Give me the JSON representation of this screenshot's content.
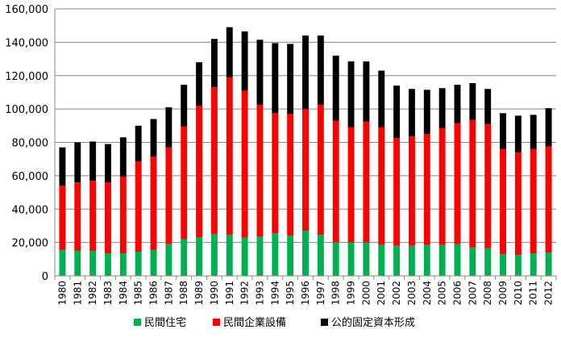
{
  "chart_data": {
    "type": "bar",
    "stacked": true,
    "title": "",
    "xlabel": "",
    "ylabel": "",
    "ylim": [
      0,
      160000
    ],
    "yticks": [
      "0",
      "20,000",
      "40,000",
      "60,000",
      "80,000",
      "100,000",
      "120,000",
      "140,000",
      "160,000"
    ],
    "grid": true,
    "legend_position": "bottom",
    "categories": [
      "1980",
      "1981",
      "1982",
      "1983",
      "1984",
      "1985",
      "1986",
      "1987",
      "1988",
      "1989",
      "1990",
      "1991",
      "1992",
      "1993",
      "1994",
      "1995",
      "1996",
      "1997",
      "1998",
      "1999",
      "2000",
      "2001",
      "2002",
      "2003",
      "2004",
      "2005",
      "2006",
      "2007",
      "2008",
      "2009",
      "2010",
      "2011",
      "2012"
    ],
    "series": [
      {
        "name": "民間住宅",
        "color": "#00b050",
        "values": [
          15500,
          15000,
          15000,
          13500,
          13500,
          14500,
          15500,
          19000,
          22000,
          23000,
          25000,
          24500,
          23000,
          23500,
          25500,
          24000,
          27000,
          24500,
          20000,
          20000,
          20000,
          18500,
          18000,
          18000,
          18500,
          18500,
          19000,
          17000,
          16500,
          13000,
          12500,
          13500,
          14000
        ]
      },
      {
        "name": "民間企業設備",
        "color": "#ff0000",
        "values": [
          38500,
          41000,
          42000,
          42500,
          46000,
          54000,
          56000,
          58000,
          67500,
          79000,
          88000,
          94500,
          88000,
          79000,
          72000,
          73000,
          73000,
          78000,
          73000,
          69000,
          72500,
          70500,
          64500,
          65500,
          66500,
          70000,
          72500,
          76500,
          74500,
          63000,
          61500,
          62500,
          63500
        ]
      },
      {
        "name": "公的固定資本形成",
        "color": "#000000",
        "values": [
          23000,
          24000,
          23500,
          23000,
          23500,
          21500,
          22500,
          24000,
          25000,
          26000,
          29000,
          30000,
          35500,
          39000,
          42000,
          42000,
          44000,
          41500,
          39000,
          39500,
          36000,
          34000,
          31500,
          28500,
          26500,
          24000,
          23000,
          22000,
          21000,
          21500,
          22000,
          20500,
          23000
        ]
      }
    ]
  }
}
